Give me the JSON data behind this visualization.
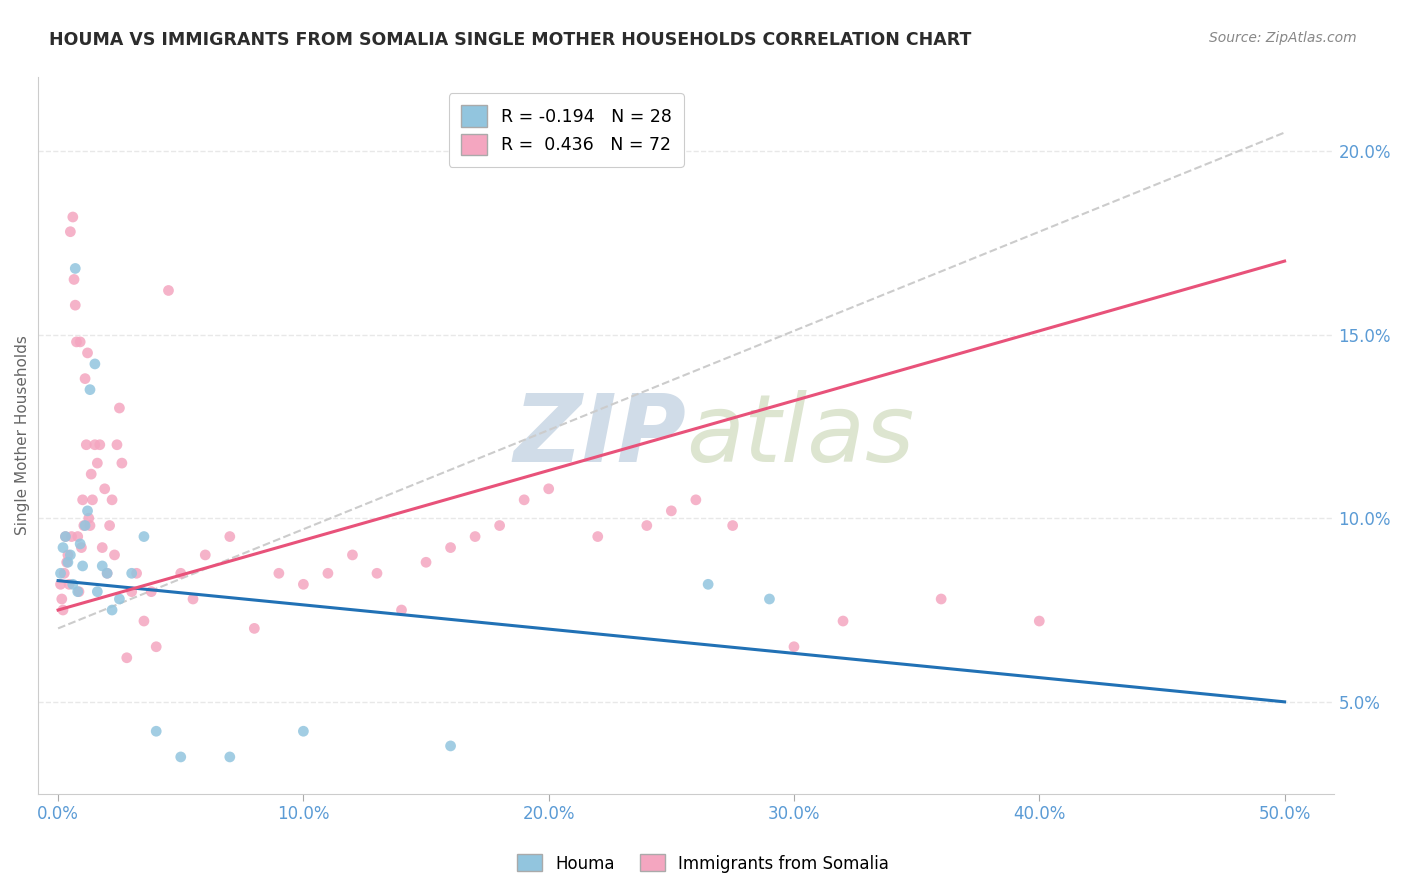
{
  "title": "HOUMA VS IMMIGRANTS FROM SOMALIA SINGLE MOTHER HOUSEHOLDS CORRELATION CHART",
  "source": "Source: ZipAtlas.com",
  "xlabel_ticks": [
    0.0,
    10.0,
    20.0,
    30.0,
    40.0,
    50.0
  ],
  "ylabel_ticks": [
    5.0,
    10.0,
    15.0,
    20.0
  ],
  "ylabel": "Single Mother Households",
  "xlim": [
    -0.8,
    52
  ],
  "ylim": [
    2.5,
    22.0
  ],
  "houma_color": "#92c5de",
  "somalia_color": "#f4a6c0",
  "houma_line_color": "#2171b5",
  "somalia_line_color": "#e8527a",
  "diag_color": "#cccccc",
  "houma_R": -0.194,
  "houma_N": 28,
  "somalia_R": 0.436,
  "somalia_N": 72,
  "houma_scatter_x": [
    0.1,
    0.2,
    0.3,
    0.4,
    0.5,
    0.6,
    0.7,
    0.8,
    0.9,
    1.0,
    1.1,
    1.2,
    1.3,
    1.5,
    1.6,
    1.8,
    2.0,
    2.2,
    2.5,
    3.0,
    3.5,
    4.0,
    5.0,
    7.0,
    10.0,
    16.0,
    26.5,
    29.0
  ],
  "houma_scatter_y": [
    8.5,
    9.2,
    9.5,
    8.8,
    9.0,
    8.2,
    16.8,
    8.0,
    9.3,
    8.7,
    9.8,
    10.2,
    13.5,
    14.2,
    8.0,
    8.7,
    8.5,
    7.5,
    7.8,
    8.5,
    9.5,
    4.2,
    3.5,
    3.5,
    4.2,
    3.8,
    8.2,
    7.8
  ],
  "somalia_scatter_x": [
    0.1,
    0.15,
    0.2,
    0.25,
    0.3,
    0.35,
    0.4,
    0.45,
    0.5,
    0.55,
    0.6,
    0.65,
    0.7,
    0.75,
    0.8,
    0.85,
    0.9,
    0.95,
    1.0,
    1.05,
    1.1,
    1.15,
    1.2,
    1.25,
    1.3,
    1.35,
    1.4,
    1.5,
    1.6,
    1.7,
    1.8,
    1.9,
    2.0,
    2.1,
    2.2,
    2.3,
    2.4,
    2.5,
    2.6,
    2.8,
    3.0,
    3.2,
    3.5,
    3.8,
    4.0,
    4.5,
    5.0,
    5.5,
    6.0,
    7.0,
    8.0,
    9.0,
    10.0,
    11.0,
    12.0,
    13.0,
    14.0,
    15.0,
    16.0,
    17.0,
    18.0,
    19.0,
    20.0,
    22.0,
    24.0,
    25.0,
    26.0,
    27.5,
    30.0,
    32.0,
    36.0,
    40.0
  ],
  "somalia_scatter_y": [
    8.2,
    7.8,
    7.5,
    8.5,
    9.5,
    8.8,
    9.0,
    8.2,
    17.8,
    9.5,
    18.2,
    16.5,
    15.8,
    14.8,
    9.5,
    8.0,
    14.8,
    9.2,
    10.5,
    9.8,
    13.8,
    12.0,
    14.5,
    10.0,
    9.8,
    11.2,
    10.5,
    12.0,
    11.5,
    12.0,
    9.2,
    10.8,
    8.5,
    9.8,
    10.5,
    9.0,
    12.0,
    13.0,
    11.5,
    6.2,
    8.0,
    8.5,
    7.2,
    8.0,
    6.5,
    16.2,
    8.5,
    7.8,
    9.0,
    9.5,
    7.0,
    8.5,
    8.2,
    8.5,
    9.0,
    8.5,
    7.5,
    8.8,
    9.2,
    9.5,
    9.8,
    10.5,
    10.8,
    9.5,
    9.8,
    10.2,
    10.5,
    9.8,
    6.5,
    7.2,
    7.8,
    7.2
  ],
  "watermark_zip": "ZIP",
  "watermark_atlas": "atlas",
  "background_color": "#ffffff",
  "grid_color": "#e8e8e8",
  "tick_color": "#5b9bd5"
}
